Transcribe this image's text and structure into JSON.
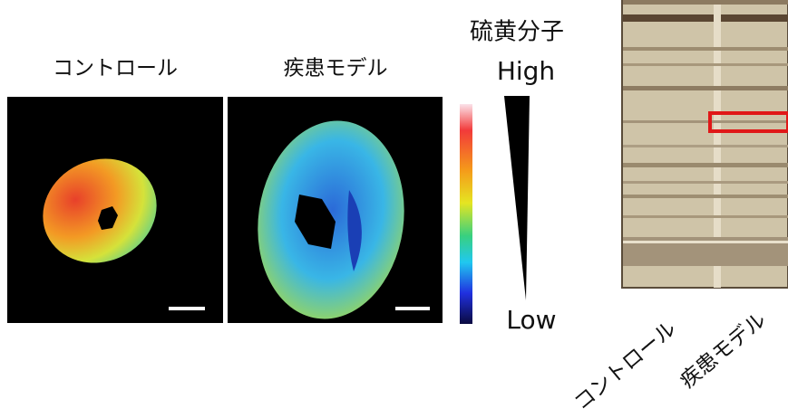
{
  "imaging": {
    "labels": [
      "コントロール",
      "疾患モデル"
    ]
  },
  "colorbar": {
    "title": "硫黄分子",
    "high": "High",
    "low": "Low"
  },
  "gel": {
    "labels": [
      "コントロール",
      "疾患モデル"
    ]
  }
}
